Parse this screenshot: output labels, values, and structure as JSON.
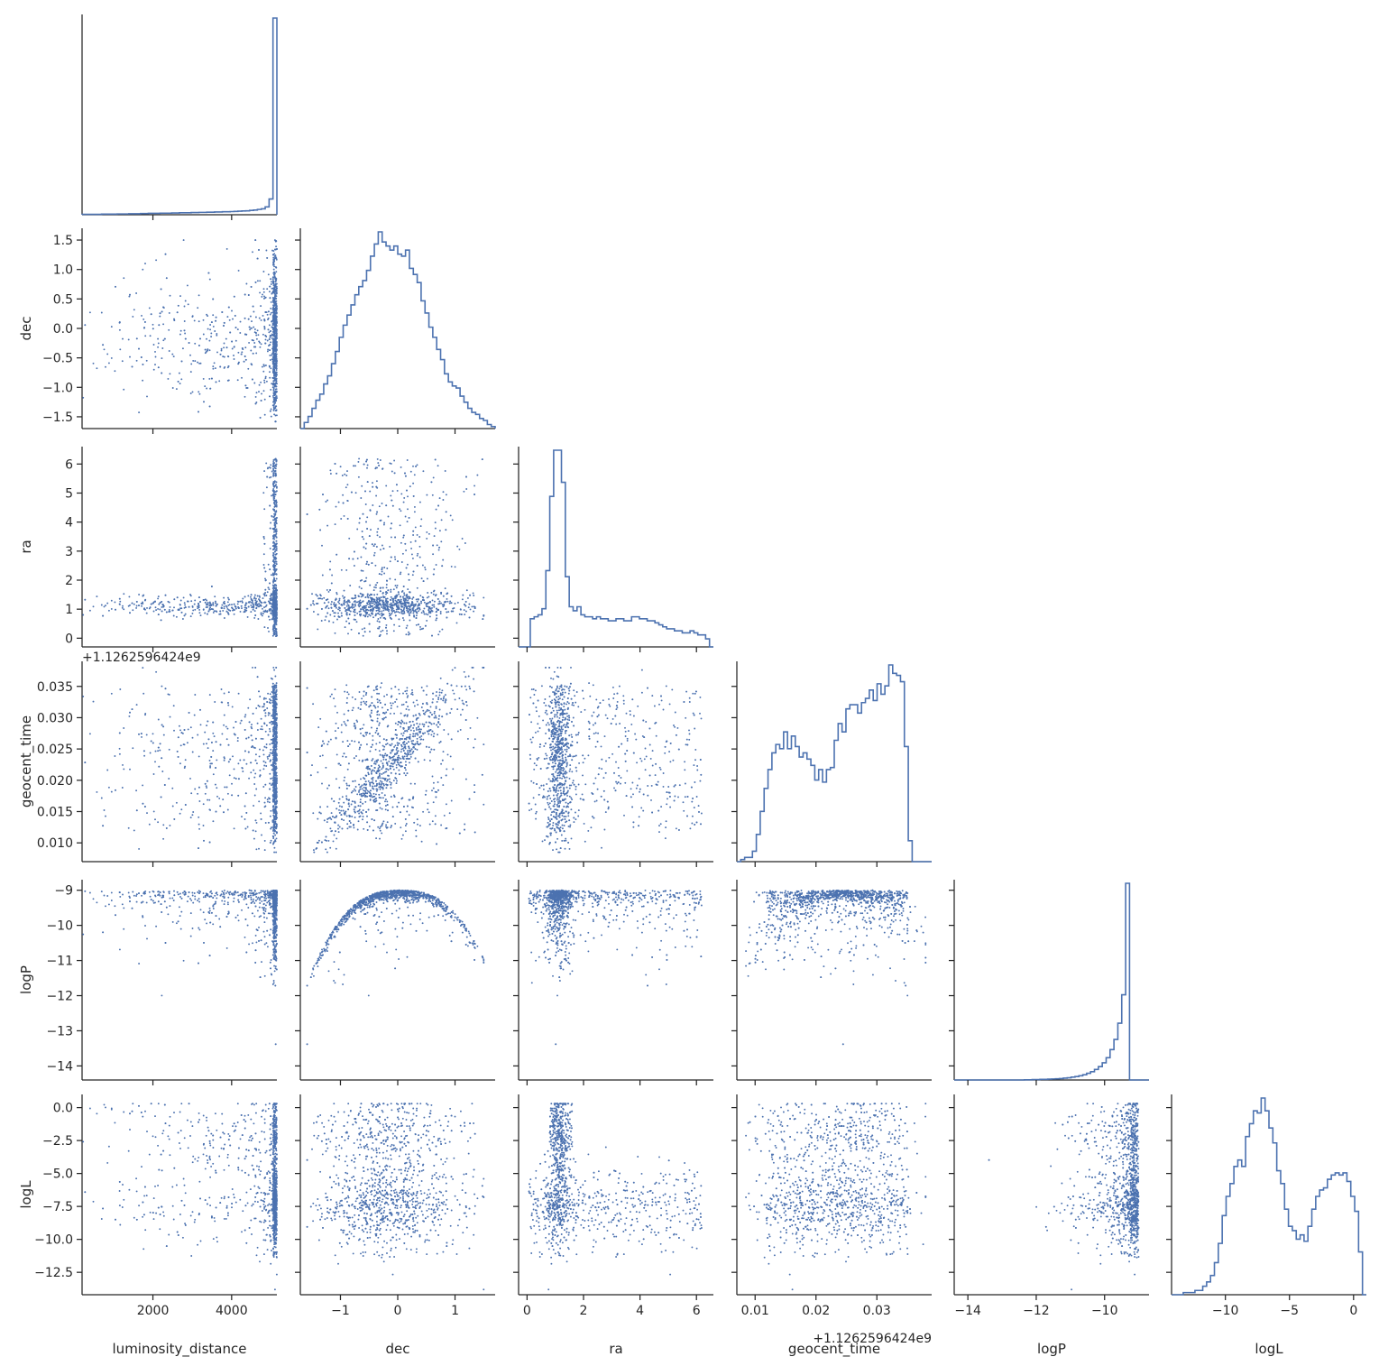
{
  "chart_data": {
    "type": "pairplot",
    "title": "",
    "color": "#4c72b0",
    "variables": [
      "luminosity_distance",
      "dec",
      "ra",
      "geocent_time",
      "logP",
      "logL"
    ],
    "offsets": {
      "geocent_time": "+1.1262596424e9"
    },
    "axes": {
      "luminosity_distance": {
        "label": "luminosity_distance",
        "range": [
          200,
          5150
        ],
        "ticks": [
          2000,
          4000
        ],
        "tick_labels": [
          "2000",
          "4000"
        ]
      },
      "dec": {
        "label": "dec",
        "range": [
          -1.7,
          1.7
        ],
        "ticks": [
          -1.5,
          -1.0,
          -0.5,
          0.0,
          0.5,
          1.0,
          1.5
        ],
        "tick_labels": [
          "−1.5",
          "−1.0",
          "−0.5",
          "0.0",
          "0.5",
          "1.0",
          "1.5"
        ],
        "x_ticks": [
          -1,
          0,
          1
        ],
        "x_tick_labels": [
          "−1",
          "0",
          "1"
        ]
      },
      "ra": {
        "label": "ra",
        "range": [
          -0.3,
          6.6
        ],
        "ticks": [
          0,
          1,
          2,
          3,
          4,
          5,
          6
        ],
        "tick_labels": [
          "0",
          "1",
          "2",
          "3",
          "4",
          "5",
          "6"
        ],
        "x_ticks": [
          0,
          2,
          4,
          6
        ],
        "x_tick_labels": [
          "0",
          "2",
          "4",
          "6"
        ]
      },
      "geocent_time": {
        "label": "geocent_time",
        "range": [
          0.007,
          0.039
        ],
        "ticks": [
          0.01,
          0.015,
          0.02,
          0.025,
          0.03,
          0.035
        ],
        "tick_labels": [
          "0.010",
          "0.015",
          "0.020",
          "0.025",
          "0.030",
          "0.035"
        ],
        "x_ticks": [
          0.01,
          0.02,
          0.03
        ],
        "x_tick_labels": [
          "0.01",
          "0.02",
          "0.03"
        ]
      },
      "logP": {
        "label": "logP",
        "range": [
          -14.4,
          -8.7
        ],
        "ticks": [
          -14,
          -13,
          -12,
          -11,
          -10,
          -9
        ],
        "tick_labels": [
          "−14",
          "−13",
          "−12",
          "−11",
          "−10",
          "−9"
        ],
        "x_ticks": [
          -14,
          -12,
          -10
        ],
        "x_tick_labels": [
          "−14",
          "−12",
          "−10"
        ]
      },
      "logL": {
        "label": "logL",
        "range": [
          -14.2,
          1.0
        ],
        "ticks": [
          -12.5,
          -10.0,
          -7.5,
          -5.0,
          -2.5,
          0.0
        ],
        "tick_labels": [
          "−12.5",
          "−10.0",
          "−7.5",
          "−5.0",
          "−2.5",
          "0.0"
        ],
        "x_ticks": [
          -10,
          -5,
          0
        ],
        "x_tick_labels": [
          "−10",
          "−5",
          "0"
        ]
      }
    },
    "histograms": {
      "luminosity_distance": {
        "edges_start": 200,
        "edges_end": 5150,
        "counts": [
          0.2,
          0.2,
          0.2,
          0.2,
          0.2,
          0.3,
          0.3,
          0.3,
          0.3,
          0.4,
          0.4,
          0.4,
          0.5,
          0.5,
          0.5,
          0.6,
          0.6,
          0.7,
          0.7,
          0.7,
          0.8,
          0.8,
          0.8,
          0.9,
          0.9,
          1.0,
          1.0,
          1.0,
          1.1,
          1.1,
          1.2,
          1.2,
          1.3,
          1.3,
          1.4,
          1.4,
          1.5,
          1.5,
          1.6,
          1.7,
          1.8,
          1.9,
          2.0,
          2.2,
          2.4,
          2.7,
          3.0,
          4.0,
          8.0,
          100.0
        ]
      },
      "dec": {
        "edges_start": -1.7,
        "edges_end": 1.7,
        "counts": [
          0,
          3,
          6,
          10,
          14,
          17,
          22,
          26,
          32,
          38,
          45,
          51,
          56,
          61,
          66,
          70,
          73,
          78,
          85,
          91,
          97,
          92,
          90,
          88,
          90,
          86,
          85,
          88,
          79,
          76,
          72,
          63,
          57,
          50,
          45,
          39,
          34,
          27,
          23,
          21,
          20,
          16,
          13,
          10,
          8,
          7,
          5,
          4,
          2,
          1
        ]
      },
      "ra": {
        "edges_start": -0.3,
        "edges_end": 6.6,
        "counts": [
          0,
          0,
          0,
          14,
          15,
          16,
          19,
          38,
          75,
          98,
          98,
          82,
          35,
          20,
          18,
          20,
          16,
          15,
          15,
          14,
          15,
          14,
          14,
          13,
          13,
          14,
          14,
          13,
          13,
          15,
          15,
          14,
          14,
          13,
          13,
          12,
          11,
          10,
          9,
          9,
          8,
          8,
          7,
          7,
          8,
          7,
          6,
          6,
          4,
          0
        ]
      },
      "geocent_time": {
        "edges_start": 0.007,
        "edges_end": 0.039,
        "counts": [
          0,
          1,
          2,
          2,
          5,
          13,
          24,
          35,
          44,
          52,
          56,
          54,
          62,
          54,
          60,
          55,
          50,
          52,
          49,
          46,
          39,
          44,
          38,
          44,
          45,
          58,
          66,
          62,
          73,
          75,
          75,
          71,
          76,
          78,
          82,
          77,
          85,
          80,
          84,
          94,
          90,
          89,
          86,
          55,
          10,
          0,
          0,
          0,
          0,
          0
        ]
      },
      "logP": {
        "edges_start": -14.4,
        "edges_end": -8.7,
        "counts": [
          0,
          0,
          0,
          0,
          0,
          0,
          0,
          0,
          0,
          0,
          0,
          0,
          0,
          0,
          0,
          0,
          0,
          0,
          0.1,
          0.1,
          0.2,
          0.2,
          0.3,
          0.3,
          0.4,
          0.5,
          0.6,
          0.7,
          0.9,
          1.1,
          1.4,
          1.7,
          2.1,
          2.6,
          3.3,
          4.1,
          5.2,
          6.6,
          8.5,
          11,
          15,
          20,
          28,
          42,
          97,
          0,
          0,
          0,
          0,
          0
        ]
      },
      "logL": {
        "edges_start": -14.2,
        "edges_end": 1.0,
        "counts": [
          0,
          0,
          0,
          1,
          1,
          1,
          2,
          2,
          4,
          6,
          9,
          15,
          24,
          37,
          46,
          52,
          60,
          63,
          60,
          74,
          80,
          86,
          85,
          92,
          86,
          78,
          71,
          58,
          52,
          40,
          32,
          30,
          26,
          28,
          25,
          32,
          40,
          46,
          49,
          50,
          54,
          56,
          57,
          56,
          57,
          53,
          46,
          39,
          20,
          0
        ]
      }
    },
    "scatter_points_per_panel": 1400,
    "grid": false,
    "layout": "corner",
    "legend": "none"
  }
}
